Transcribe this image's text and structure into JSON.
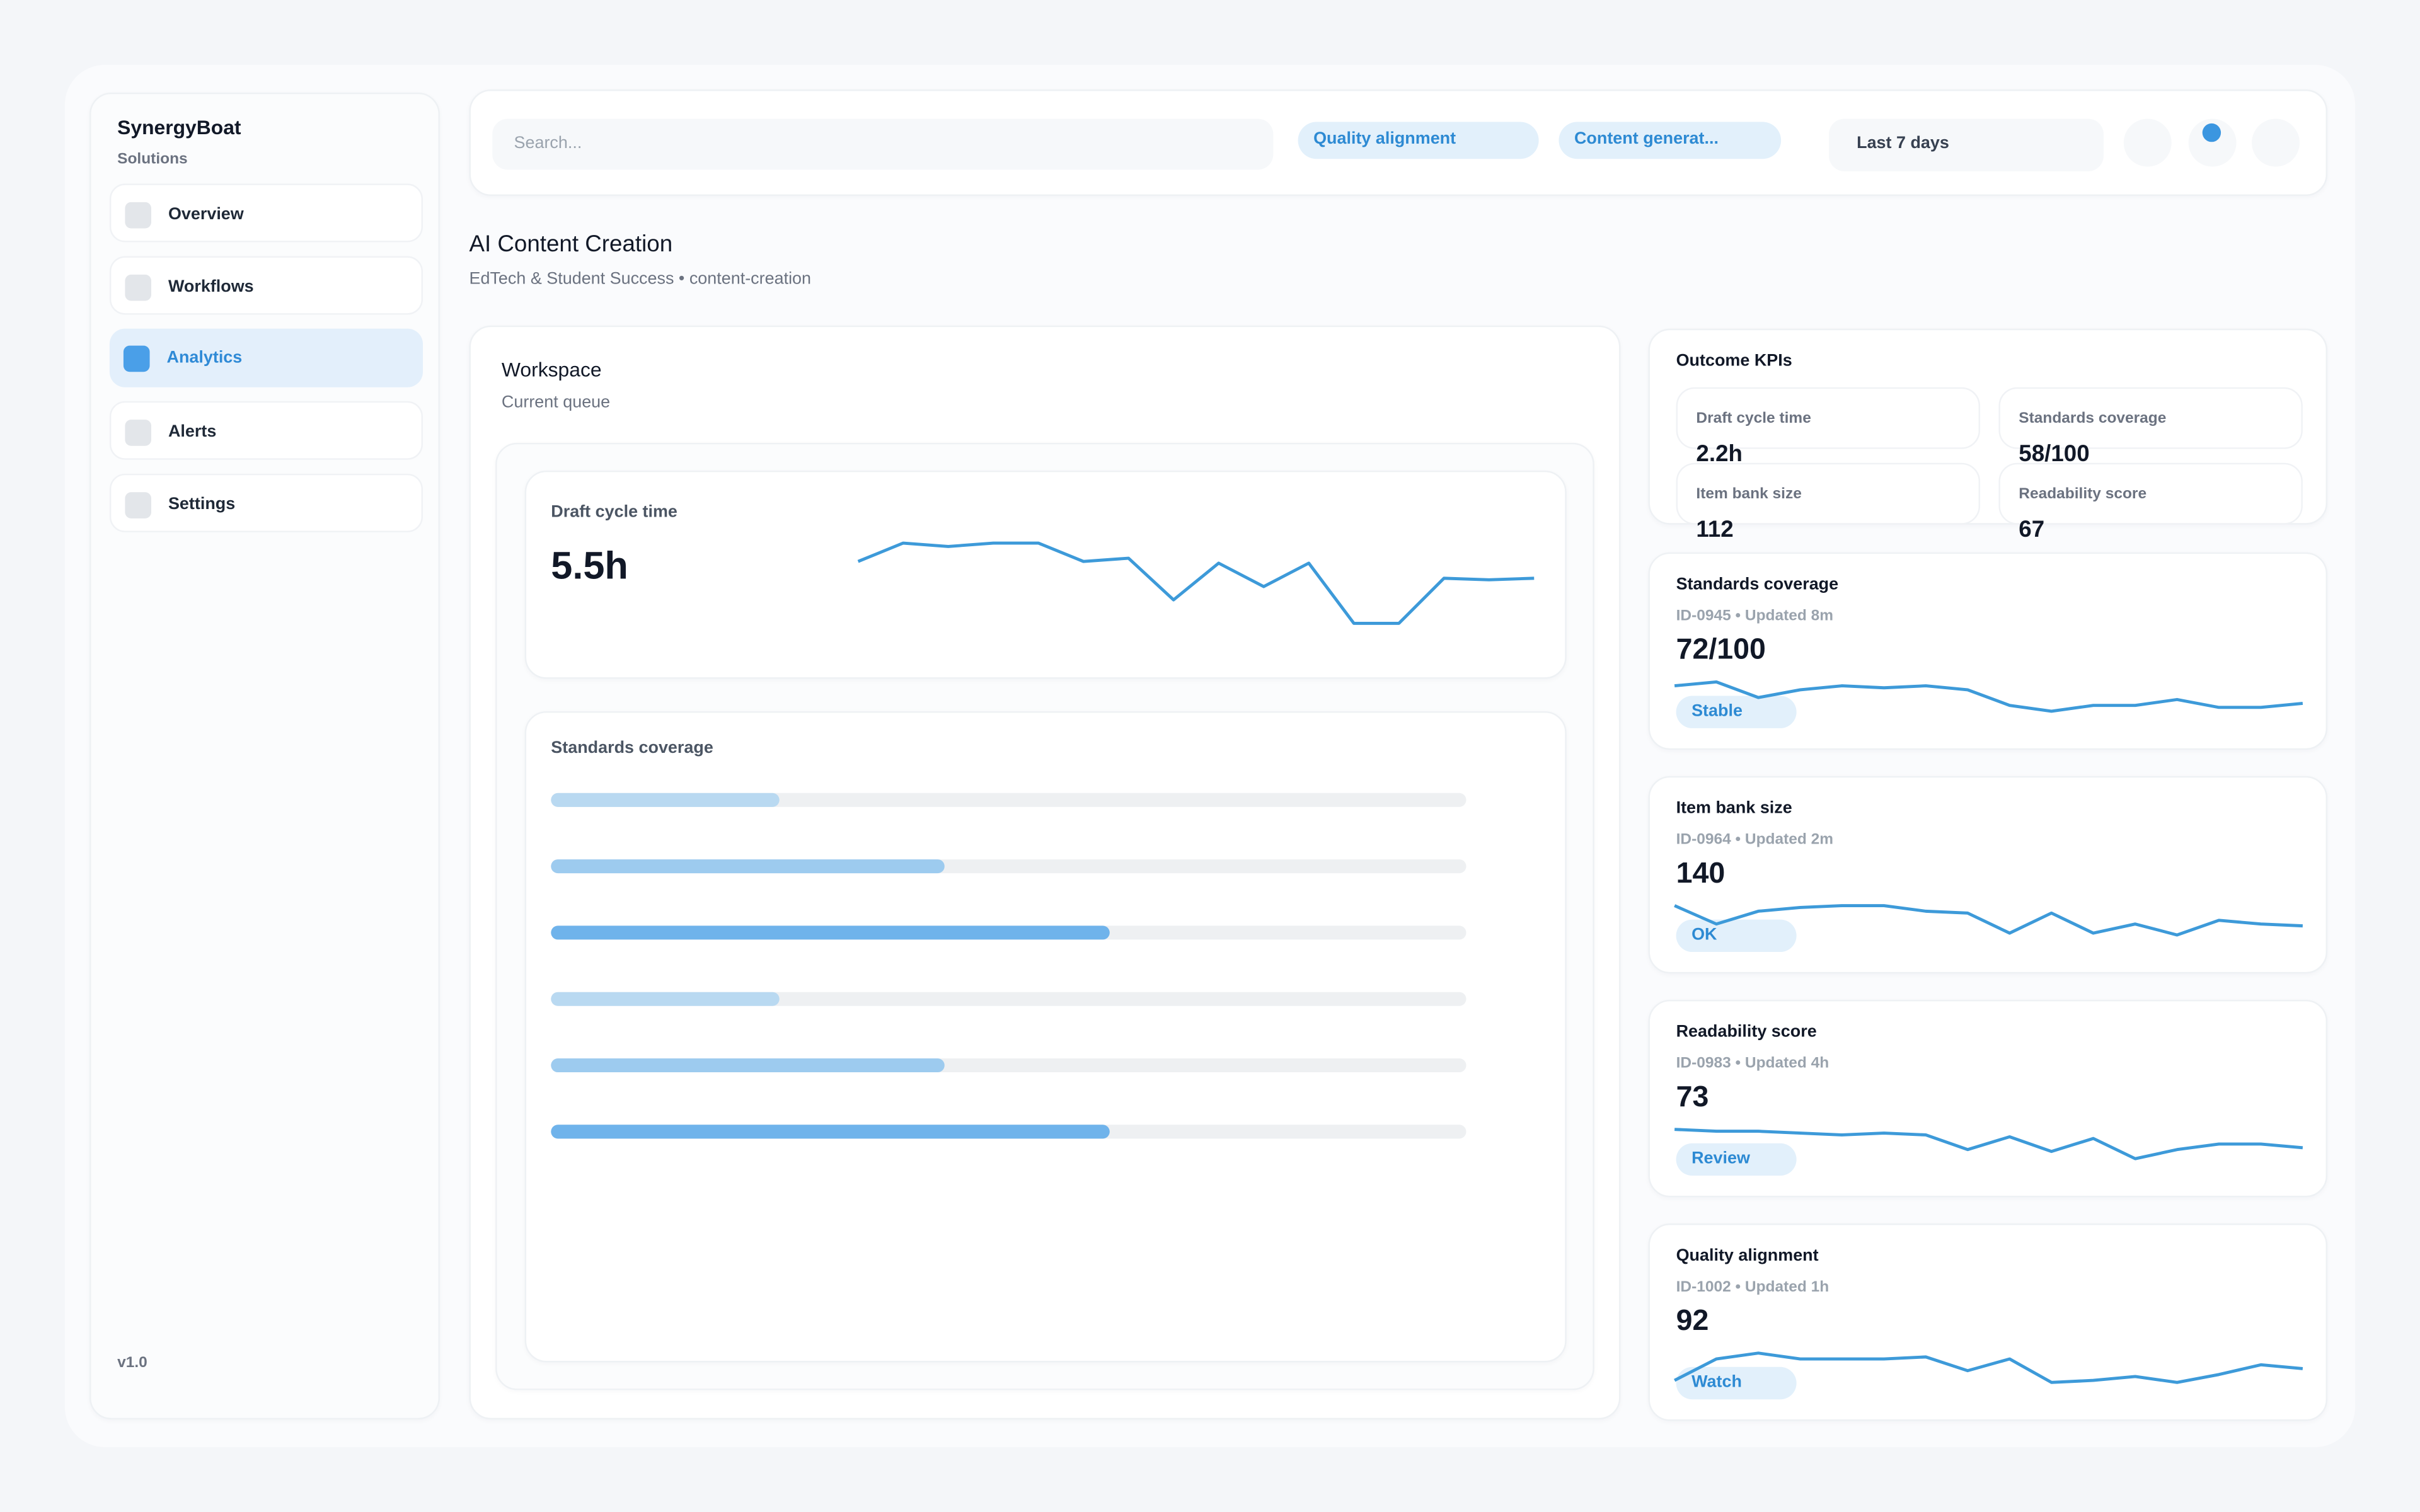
{
  "sidebar": {
    "brand": "SynergyBoat",
    "subtitle": "Solutions",
    "nav": [
      "Overview",
      "Workflows",
      "Analytics",
      "Alerts",
      "Settings"
    ],
    "version": "v1.0"
  },
  "topbar": {
    "search_placeholder": "Search...",
    "chips": [
      "Quality alignment",
      "Content generat..."
    ],
    "date_range": "Last 7 days"
  },
  "header": {
    "title": "AI Content Creation",
    "subtitle": "EdTech & Student Success • content-creation"
  },
  "workspace": {
    "title": "Workspace",
    "subtitle": "Current queue",
    "metric": {
      "label": "Draft cycle time",
      "value": "5.5h",
      "trend": [
        44,
        55,
        53,
        55,
        55,
        44,
        46,
        21,
        43,
        29,
        43,
        7,
        7,
        34,
        33,
        34
      ]
    },
    "progress": {
      "title": "Standards coverage",
      "values": [
        25,
        43,
        61,
        25,
        43,
        61
      ]
    }
  },
  "kpis": {
    "title": "Outcome KPIs",
    "items": [
      {
        "label": "Draft cycle time",
        "value": "2.2h"
      },
      {
        "label": "Standards coverage",
        "value": "58/100"
      },
      {
        "label": "Item bank size",
        "value": "112"
      },
      {
        "label": "Readability score",
        "value": "67"
      }
    ]
  },
  "cards": [
    {
      "title": "Standards coverage",
      "meta": "ID-0945 • Updated 8m",
      "value": "72/100",
      "badge": "Stable",
      "trend": [
        13,
        15,
        7,
        11,
        13,
        12,
        13,
        11,
        3,
        0,
        3,
        3,
        6,
        2,
        2,
        4
      ]
    },
    {
      "title": "Item bank size",
      "meta": "ID-0964 • Updated 2m",
      "value": "140",
      "badge": "OK",
      "trend": [
        16,
        6,
        13,
        15,
        16,
        16,
        13,
        12,
        1,
        12,
        1,
        6,
        0,
        8,
        6,
        5
      ]
    },
    {
      "title": "Readability score",
      "meta": "ID-0983 • Updated 4h",
      "value": "73",
      "badge": "Review",
      "trend": [
        16,
        15,
        15,
        14,
        13,
        14,
        13,
        5,
        12,
        4,
        11,
        0,
        5,
        8,
        8,
        6
      ]
    },
    {
      "title": "Quality alignment",
      "meta": "ID-1002 • Updated 1h",
      "value": "92",
      "badge": "Watch",
      "trend": [
        1,
        12,
        15,
        12,
        12,
        12,
        13,
        6,
        12,
        0,
        1,
        3,
        0,
        4,
        9,
        7
      ]
    }
  ]
}
